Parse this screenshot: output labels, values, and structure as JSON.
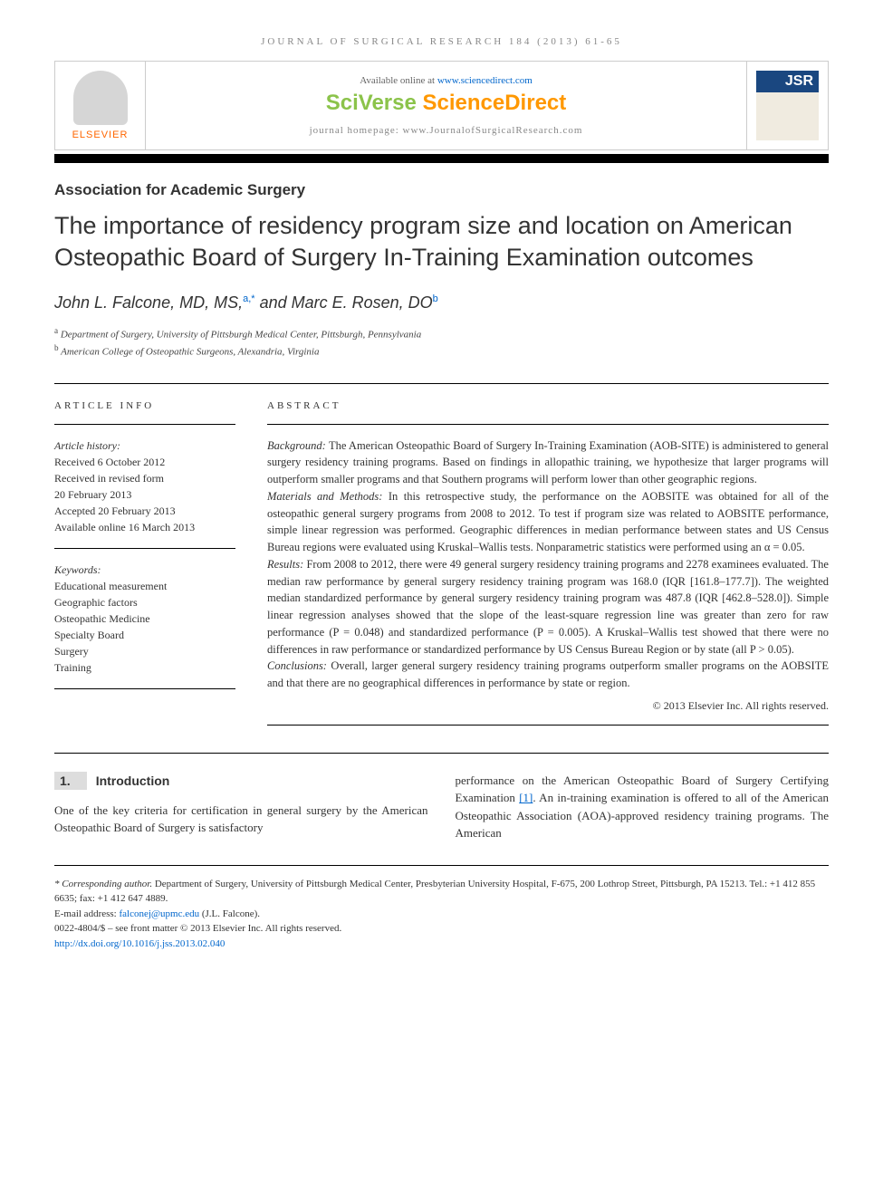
{
  "header": {
    "journal_line": "JOURNAL OF SURGICAL RESEARCH 184 (2013) 61-65",
    "available_text": "Available online at ",
    "available_url": "www.sciencedirect.com",
    "sciverse_sci": "SciVerse ",
    "sciverse_direct": "ScienceDirect",
    "homepage_label": "journal homepage: www.JournalofSurgicalResearch.com",
    "elsevier": "ELSEVIER",
    "jsr": "JSR"
  },
  "article": {
    "section": "Association for Academic Surgery",
    "title": "The importance of residency program size and location on American Osteopathic Board of Surgery In-Training Examination outcomes",
    "author1_name": "John L. Falcone, MD, MS,",
    "author1_sup": "a,",
    "author1_star": "*",
    "and": " and ",
    "author2_name": "Marc E. Rosen, DO",
    "author2_sup": "b",
    "aff_a": "Department of Surgery, University of Pittsburgh Medical Center, Pittsburgh, Pennsylvania",
    "aff_b": "American College of Osteopathic Surgeons, Alexandria, Virginia"
  },
  "info": {
    "heading": "ARTICLE INFO",
    "history_label": "Article history:",
    "received": "Received 6 October 2012",
    "revised1": "Received in revised form",
    "revised2": "20 February 2013",
    "accepted": "Accepted 20 February 2013",
    "online": "Available online 16 March 2013",
    "keywords_label": "Keywords:",
    "kw1": "Educational measurement",
    "kw2": "Geographic factors",
    "kw3": "Osteopathic Medicine",
    "kw4": "Specialty Board",
    "kw5": "Surgery",
    "kw6": "Training"
  },
  "abstract": {
    "heading": "ABSTRACT",
    "bg_label": "Background: ",
    "bg": "The American Osteopathic Board of Surgery In-Training Examination (AOB-SITE) is administered to general surgery residency training programs. Based on findings in allopathic training, we hypothesize that larger programs will outperform smaller programs and that Southern programs will perform lower than other geographic regions.",
    "mm_label": "Materials and Methods: ",
    "mm": "In this retrospective study, the performance on the AOBSITE was obtained for all of the osteopathic general surgery programs from 2008 to 2012. To test if program size was related to AOBSITE performance, simple linear regression was performed. Geographic differences in median performance between states and US Census Bureau regions were evaluated using Kruskal–Wallis tests. Nonparametric statistics were performed using an α = 0.05.",
    "res_label": "Results: ",
    "res": "From 2008 to 2012, there were 49 general surgery residency training programs and 2278 examinees evaluated. The median raw performance by general surgery residency training program was 168.0 (IQR [161.8–177.7]). The weighted median standardized performance by general surgery residency training program was 487.8 (IQR [462.8–528.0]). Simple linear regression analyses showed that the slope of the least-square regression line was greater than zero for raw performance (P = 0.048) and standardized performance (P = 0.005). A Kruskal–Wallis test showed that there were no differences in raw performance or standardized performance by US Census Bureau Region or by state (all P > 0.05).",
    "con_label": "Conclusions: ",
    "con": "Overall, larger general surgery residency training programs outperform smaller programs on the AOBSITE and that there are no geographical differences in performance by state or region.",
    "copyright": "© 2013 Elsevier Inc. All rights reserved."
  },
  "body": {
    "intro_num": "1.",
    "intro_heading": "Introduction",
    "col1": "One of the key criteria for certification in general surgery by the American Osteopathic Board of Surgery is satisfactory",
    "col2a": "performance on the American Osteopathic Board of Surgery Certifying Examination ",
    "ref1": "[1]",
    "col2b": ". An in-training examination is offered to all of the American Osteopathic Association (AOA)-approved residency training programs. The American"
  },
  "footer": {
    "corr_label": "* Corresponding author.",
    "corr_text": " Department of Surgery, University of Pittsburgh Medical Center, Presbyterian University Hospital, F-675, 200 Lothrop Street, Pittsburgh, PA 15213. Tel.: +1 412 855 6635; fax: +1 412 647 4889.",
    "email_label": "E-mail address: ",
    "email": "falconej@upmc.edu",
    "email_suffix": " (J.L. Falcone).",
    "issn": "0022-4804/$ – see front matter © 2013 Elsevier Inc. All rights reserved.",
    "doi": "http://dx.doi.org/10.1016/j.jss.2013.02.040"
  },
  "colors": {
    "link": "#0066cc",
    "elsevier": "#ff6600",
    "jsr_bg": "#1a4780"
  }
}
